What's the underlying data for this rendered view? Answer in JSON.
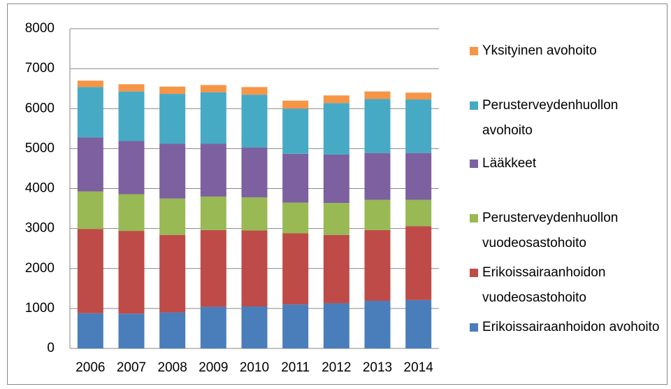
{
  "chart_data": {
    "type": "stacked_bar",
    "categories": [
      "2006",
      "2007",
      "2008",
      "2009",
      "2010",
      "2011",
      "2012",
      "2013",
      "2014"
    ],
    "series": [
      {
        "name": "Erikoissairaanhoidon avohoito",
        "color": "#4a7ebb",
        "values": [
          880,
          870,
          900,
          1040,
          1050,
          1100,
          1130,
          1190,
          1210
        ]
      },
      {
        "name": "Erikoissairaanhoidon vuodeosastohoito",
        "color": "#be4b48",
        "values": [
          2110,
          2070,
          1940,
          1920,
          1900,
          1780,
          1710,
          1770,
          1850
        ]
      },
      {
        "name": "Perusterveydenhuollon vuodeosastohoito",
        "color": "#98b954",
        "values": [
          940,
          920,
          910,
          840,
          830,
          770,
          800,
          760,
          660
        ]
      },
      {
        "name": "Lääkkeet",
        "color": "#7d60a0",
        "values": [
          1350,
          1330,
          1370,
          1320,
          1250,
          1220,
          1210,
          1170,
          1170
        ]
      },
      {
        "name": "Perusterveydenhuollon avohoito",
        "color": "#46aac5",
        "values": [
          1260,
          1240,
          1250,
          1290,
          1320,
          1130,
          1290,
          1350,
          1340
        ]
      },
      {
        "name": "Yksityinen avohoito",
        "color": "#f69546",
        "values": [
          160,
          180,
          180,
          180,
          190,
          200,
          190,
          190,
          170
        ]
      }
    ],
    "ylim": [
      0,
      8000
    ],
    "yticks": [
      0,
      1000,
      2000,
      3000,
      4000,
      5000,
      6000,
      7000,
      8000
    ],
    "grid": true
  }
}
